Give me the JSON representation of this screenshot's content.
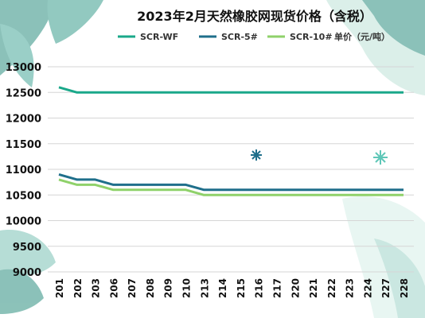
{
  "chart_data": {
    "type": "line",
    "title": "2023年2月天然橡胶网现货价格（含税）",
    "unit_label": "单价（元/吨）",
    "xlabel": "",
    "ylabel": "",
    "categories": [
      "201",
      "202",
      "203",
      "206",
      "207",
      "208",
      "209",
      "210",
      "213",
      "214",
      "215",
      "216",
      "217",
      "220",
      "221",
      "222",
      "223",
      "224",
      "227",
      "228"
    ],
    "ylim": [
      9000,
      13000
    ],
    "y_ticks": [
      9000,
      9500,
      10000,
      10500,
      11000,
      11500,
      12000,
      12500,
      13000
    ],
    "grid": true,
    "legend_position": "top",
    "series": [
      {
        "name": "SCR-WF",
        "color": "#1aa88a",
        "values": [
          12600,
          12500,
          12500,
          12500,
          12500,
          12500,
          12500,
          12500,
          12500,
          12500,
          12500,
          12500,
          12500,
          12500,
          12500,
          12500,
          12500,
          12500,
          12500,
          12500
        ]
      },
      {
        "name": "SCR-5#",
        "color": "#1f6f8b",
        "values": [
          10900,
          10800,
          10800,
          10700,
          10700,
          10700,
          10700,
          10700,
          10600,
          10600,
          10600,
          10600,
          10600,
          10600,
          10600,
          10600,
          10600,
          10600,
          10600,
          10600
        ]
      },
      {
        "name": "SCR-10#",
        "color": "#8fd16a",
        "values": [
          10800,
          10700,
          10700,
          10600,
          10600,
          10600,
          10600,
          10600,
          10500,
          10500,
          10500,
          10500,
          10500,
          10500,
          10500,
          10500,
          10500,
          10500,
          10500,
          10500
        ]
      }
    ]
  }
}
